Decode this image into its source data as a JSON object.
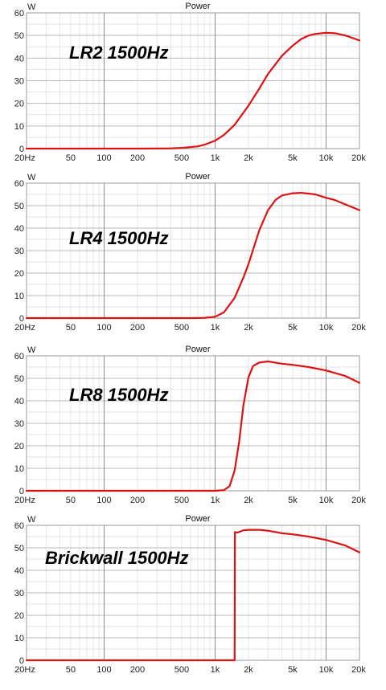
{
  "chart_data": [
    {
      "type": "line",
      "title": "Power",
      "ylabel": "W",
      "annotation": "LR2 1500Hz",
      "xscale": "log",
      "xlim": [
        20,
        20000
      ],
      "ylim": [
        0,
        60
      ],
      "xticks": [
        "20Hz",
        "50",
        "100",
        "200",
        "500",
        "1k",
        "2k",
        "5k",
        "10k",
        "20k"
      ],
      "yticks": [
        "0",
        "10",
        "20",
        "30",
        "40",
        "50",
        "60"
      ],
      "grid": true,
      "color": "#dd1111",
      "series": [
        {
          "x": [
            20,
            200,
            400,
            500,
            700,
            800,
            1000,
            1200,
            1500,
            2000,
            2500,
            3000,
            4000,
            5000,
            6000,
            7000,
            8000,
            10000,
            12000,
            15000,
            20000
          ],
          "y": [
            0,
            0,
            0.1,
            0.3,
            1.0,
            1.7,
            3.5,
            6.0,
            10.5,
            19.0,
            26.5,
            33.0,
            41.0,
            45.5,
            48.5,
            50.0,
            50.7,
            51.2,
            51.0,
            50.0,
            47.8
          ]
        }
      ]
    },
    {
      "type": "line",
      "title": "Power",
      "ylabel": "W",
      "annotation": "LR4 1500Hz",
      "xscale": "log",
      "xlim": [
        20,
        20000
      ],
      "ylim": [
        0,
        60
      ],
      "xticks": [
        "20Hz",
        "50",
        "100",
        "200",
        "500",
        "1k",
        "2k",
        "5k",
        "10k",
        "20k"
      ],
      "yticks": [
        "0",
        "10",
        "20",
        "30",
        "40",
        "50",
        "60"
      ],
      "grid": true,
      "color": "#dd1111",
      "series": [
        {
          "x": [
            20,
            600,
            800,
            1000,
            1200,
            1500,
            1800,
            2000,
            2500,
            3000,
            3500,
            4000,
            5000,
            6000,
            8000,
            10000,
            12000,
            15000,
            20000
          ],
          "y": [
            0,
            0,
            0.1,
            0.6,
            2.5,
            9.0,
            18.0,
            24.0,
            39.0,
            48.0,
            52.5,
            54.5,
            55.5,
            55.7,
            55.0,
            53.5,
            52.5,
            50.5,
            48.0
          ]
        }
      ]
    },
    {
      "type": "line",
      "title": "Power",
      "ylabel": "W",
      "annotation": "LR8 1500Hz",
      "xscale": "log",
      "xlim": [
        20,
        20000
      ],
      "ylim": [
        0,
        60
      ],
      "xticks": [
        "20Hz",
        "50",
        "100",
        "200",
        "500",
        "1k",
        "2k",
        "5k",
        "10k",
        "20k"
      ],
      "yticks": [
        "0",
        "10",
        "20",
        "30",
        "40",
        "50",
        "60"
      ],
      "grid": true,
      "color": "#dd1111",
      "series": [
        {
          "x": [
            20,
            1000,
            1200,
            1350,
            1500,
            1650,
            1800,
            2000,
            2200,
            2500,
            3000,
            4000,
            5000,
            7000,
            10000,
            15000,
            20000
          ],
          "y": [
            0,
            0,
            0.3,
            2.0,
            9.0,
            22.0,
            38.0,
            50.5,
            55.5,
            57.0,
            57.5,
            56.5,
            56.0,
            55.0,
            53.5,
            51.0,
            48.0
          ]
        }
      ]
    },
    {
      "type": "line",
      "title": "Power",
      "ylabel": "W",
      "annotation": "Brickwall 1500Hz",
      "xscale": "log",
      "xlim": [
        20,
        20000
      ],
      "ylim": [
        0,
        60
      ],
      "xticks": [
        "20Hz",
        "50",
        "100",
        "200",
        "500",
        "1k",
        "2k",
        "5k",
        "10k",
        "20k"
      ],
      "yticks": [
        "0",
        "10",
        "20",
        "30",
        "40",
        "50",
        "60"
      ],
      "grid": true,
      "color": "#dd1111",
      "series": [
        {
          "x": [
            20,
            1499,
            1500,
            1510,
            1600,
            1800,
            2000,
            2500,
            3000,
            4000,
            5000,
            7000,
            10000,
            15000,
            20000
          ],
          "y": [
            0,
            0,
            0,
            57.0,
            56.8,
            57.8,
            58.0,
            58.0,
            57.6,
            56.5,
            56.0,
            55.0,
            53.5,
            51.0,
            48.0
          ]
        }
      ]
    }
  ]
}
